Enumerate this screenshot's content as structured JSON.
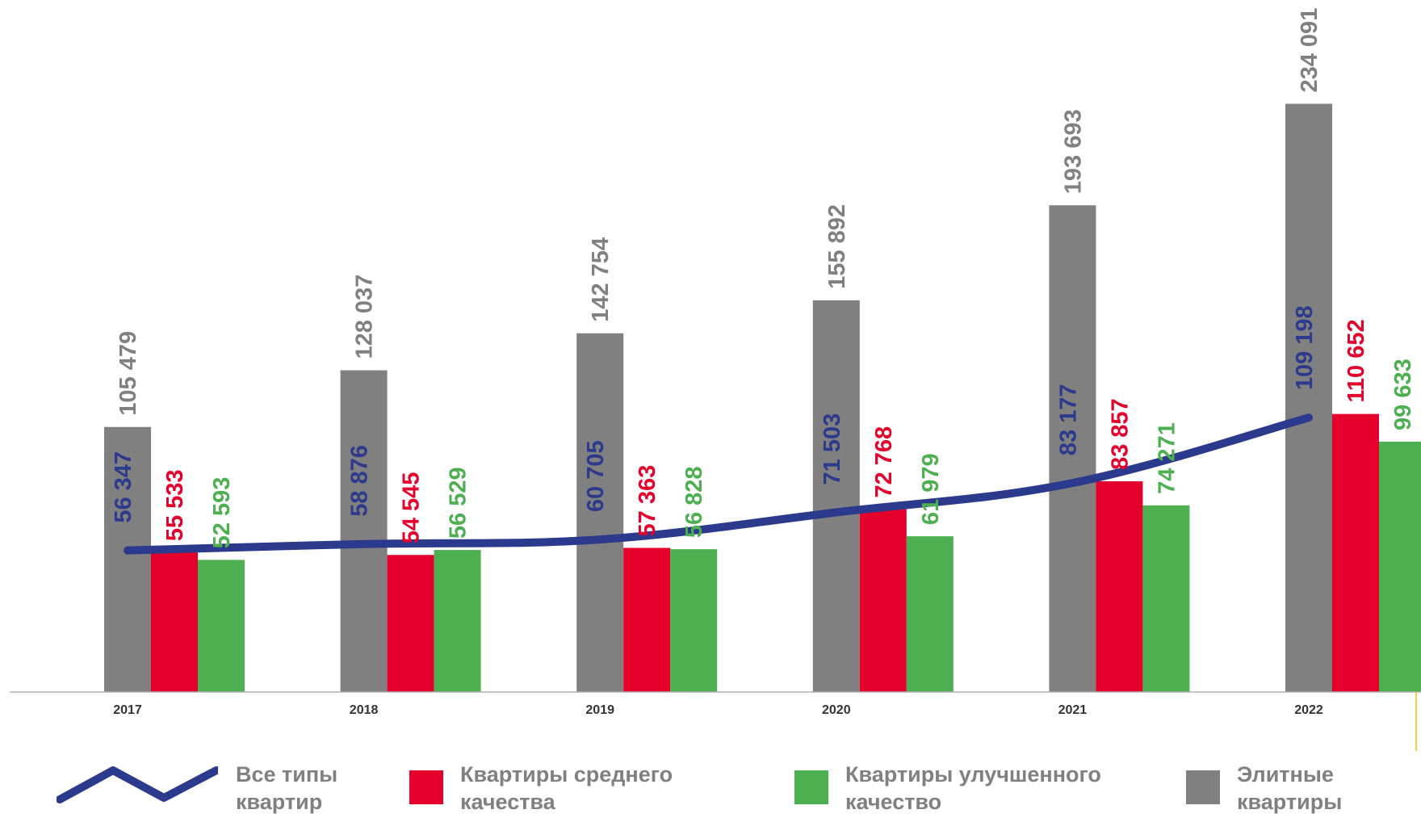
{
  "chart_data": {
    "type": "bar",
    "categories": [
      "2017",
      "2018",
      "2019",
      "2020",
      "2021",
      "2022"
    ],
    "series": [
      {
        "name": "Элитные квартиры",
        "kind": "bar",
        "color": "#808080",
        "values": [
          105479,
          128037,
          142754,
          155892,
          193693,
          234091
        ],
        "labels": [
          "105 479",
          "128 037",
          "142 754",
          "155 892",
          "193 693",
          "234 091"
        ]
      },
      {
        "name": "Квартиры среднего качества",
        "kind": "bar",
        "color": "#E4002B",
        "values": [
          55533,
          54545,
          57363,
          72768,
          83857,
          110652
        ],
        "labels": [
          "55 533",
          "54 545",
          "57 363",
          "72 768",
          "83 857",
          "110 652"
        ]
      },
      {
        "name": "Квартиры улучшенного качество",
        "kind": "bar",
        "color": "#4CAF50",
        "values": [
          52593,
          56529,
          56828,
          61979,
          74271,
          99633
        ],
        "labels": [
          "52 593",
          "56 529",
          "56 828",
          "61 979",
          "74 271",
          "99 633"
        ]
      },
      {
        "name": "Все типы квартир",
        "kind": "line",
        "color": "#2B3A8C",
        "values": [
          56347,
          58876,
          60705,
          71503,
          83177,
          109198
        ],
        "labels": [
          "56 347",
          "58 876",
          "60 705",
          "71 503",
          "83 177",
          "109 198"
        ]
      }
    ],
    "legend_placement": "bottom",
    "grid": false
  },
  "legend": [
    {
      "key": "all",
      "line1": "Все типы",
      "line2": "квартир",
      "color": "#2B3A8C"
    },
    {
      "key": "mid",
      "line1": "Квартиры среднего",
      "line2": "качества",
      "color": "#E4002B"
    },
    {
      "key": "improved",
      "line1": "Квартиры улучшенного",
      "line2": "качество",
      "color": "#4CAF50"
    },
    {
      "key": "elite",
      "line1": "Элитные",
      "line2": "квартиры",
      "color": "#808080"
    }
  ]
}
